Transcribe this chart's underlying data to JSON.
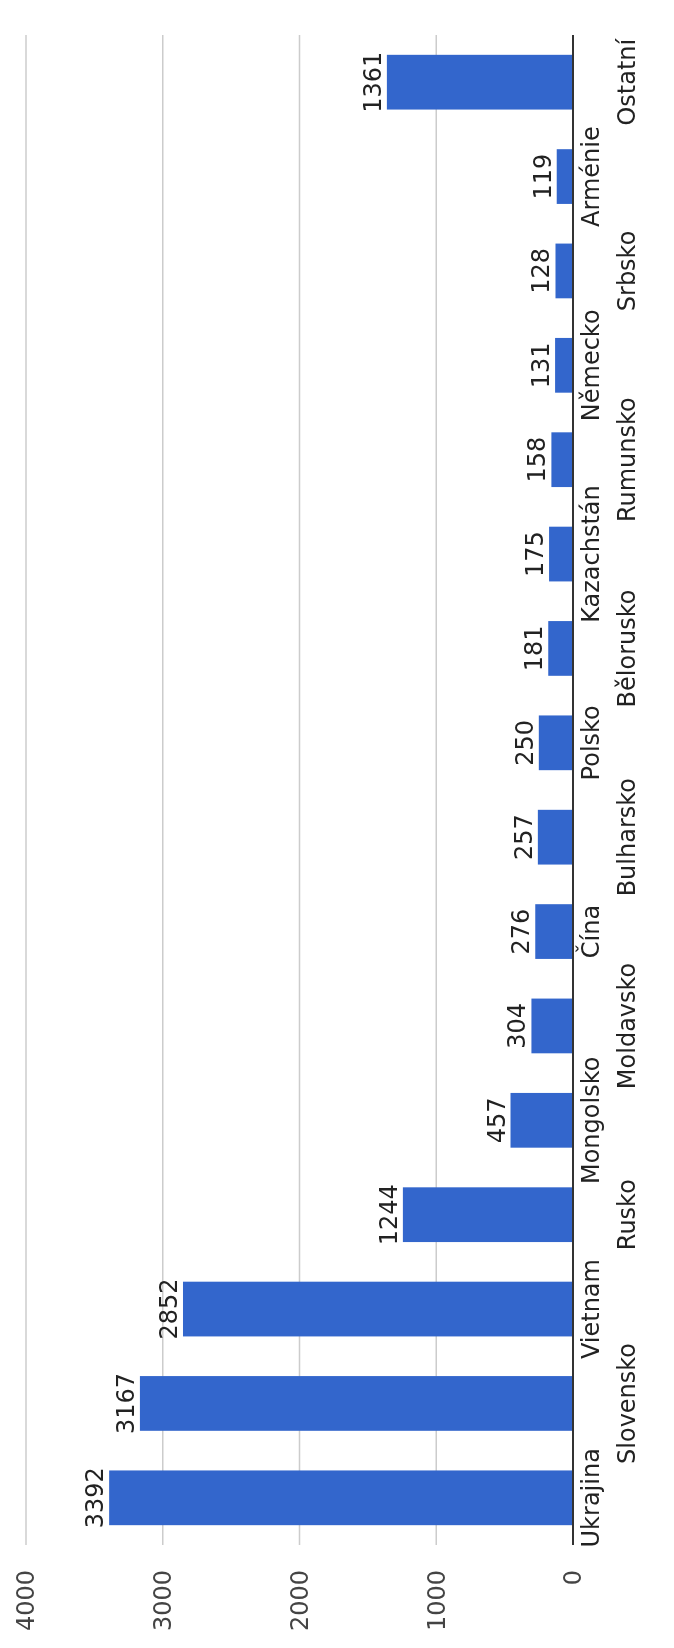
{
  "chart_data": {
    "type": "bar",
    "orientation": "horizontal",
    "categories": [
      "Ostatní",
      "Arménie",
      "Srbsko",
      "Německo",
      "Rumunsko",
      "Kazachstán",
      "Bělorusko",
      "Polsko",
      "Bulharsko",
      "Čína",
      "Moldavsko",
      "Mongolsko",
      "Rusko",
      "Vietnam",
      "Slovensko",
      "Ukrajina"
    ],
    "values": [
      1361,
      119,
      128,
      131,
      158,
      175,
      181,
      250,
      257,
      276,
      304,
      457,
      1244,
      2852,
      3167,
      3392
    ],
    "color": "#3366cc",
    "xlim": [
      4000,
      0
    ],
    "xticks": [
      0,
      1000,
      2000,
      3000,
      4000
    ],
    "grid": "x",
    "data_labels": true
  }
}
